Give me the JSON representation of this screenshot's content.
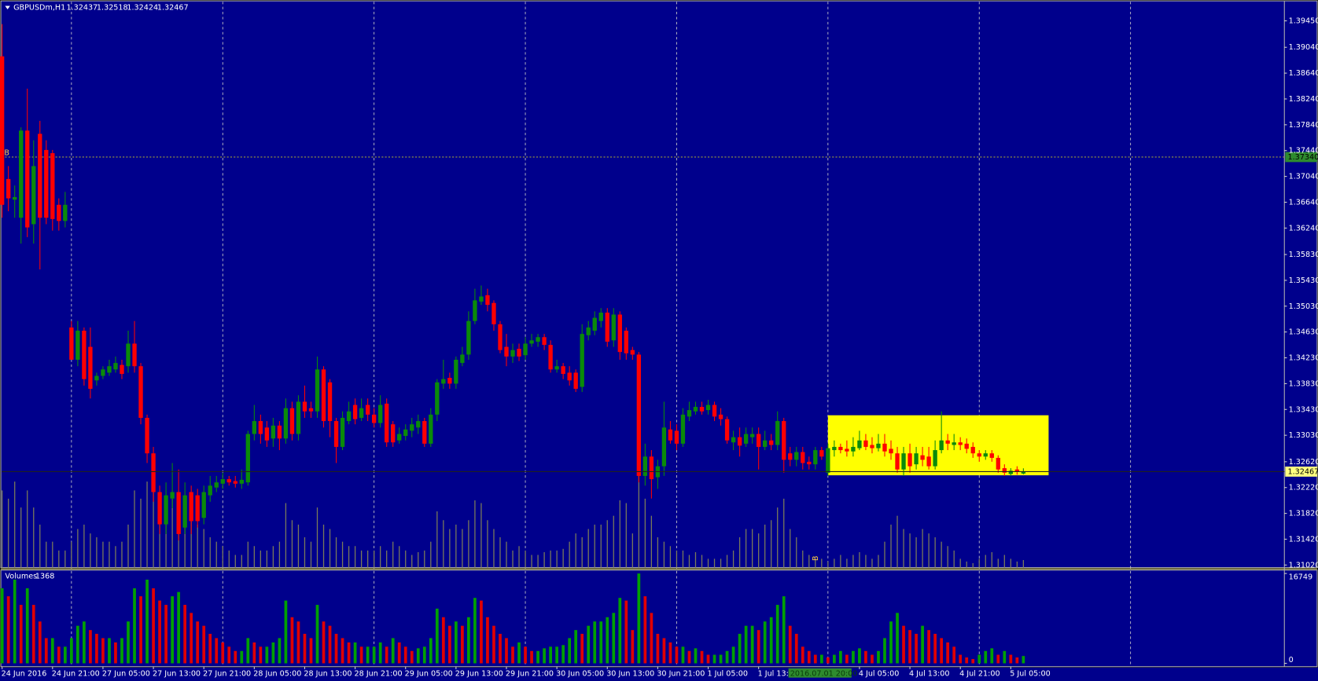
{
  "chart_data": {
    "type": "candlestick",
    "title": "GBPUSDm,H1",
    "open": [
      1.389,
      1.37,
      1.3668,
      1.364,
      1.3775,
      1.363,
      1.377,
      1.3745,
      1.374,
      1.366,
      1.3635,
      1.347,
      1.342,
      1.3465,
      1.344,
      1.3388,
      1.3395,
      1.34,
      1.3405,
      1.3412,
      1.341,
      1.3445,
      1.341,
      1.333,
      1.3275,
      1.3215,
      1.3165,
      1.3205,
      1.3215,
      1.316,
      1.3215,
      1.321,
      1.3175,
      1.321,
      1.3222,
      1.3228,
      1.3235,
      1.3232,
      1.3228,
      1.323,
      1.3305,
      1.3325,
      1.3315,
      1.3298,
      1.3318,
      1.3298,
      1.3345,
      1.3305,
      1.3355,
      1.3345,
      1.334,
      1.3405,
      1.3385,
      1.3325,
      1.3285,
      1.3325,
      1.335,
      1.333,
      1.335,
      1.3335,
      1.3322,
      1.3352,
      1.332,
      1.3295,
      1.3302,
      1.331,
      1.3315,
      1.3325,
      1.329,
      1.3335,
      1.3383,
      1.3392,
      1.3383,
      1.3415,
      1.3428,
      1.348,
      1.351,
      1.352,
      1.3508,
      1.3475,
      1.344,
      1.3425,
      1.3437,
      1.3427,
      1.3445,
      1.3448,
      1.3455,
      1.3443,
      1.3405,
      1.341,
      1.34,
      1.34,
      1.3378,
      1.3458,
      1.3465,
      1.348,
      1.3493,
      1.345,
      1.349,
      1.3465,
      1.3435,
      1.3428,
      1.324,
      1.327,
      1.3238,
      1.3255,
      1.3312,
      1.331,
      1.329,
      1.3332,
      1.334,
      1.3347,
      1.3342,
      1.335,
      1.3335,
      1.3328,
      1.3292,
      1.33,
      1.329,
      1.33,
      1.3305,
      1.3285,
      1.3295,
      1.3288,
      1.3325,
      1.3275,
      1.3265,
      1.3277,
      1.3262,
      1.3258,
      1.328,
      1.3245,
      1.328,
      1.3285,
      1.3282,
      1.3278,
      1.3283,
      1.3295,
      1.3288,
      1.3283,
      1.329,
      1.3282,
      1.3275,
      1.325,
      1.3275,
      1.3258,
      1.3272,
      1.327,
      1.3255,
      1.328,
      1.3295,
      1.3288,
      1.3292,
      1.329,
      1.3285,
      1.3275,
      1.327,
      1.3275,
      1.3268,
      1.3252,
      1.3243,
      1.325,
      1.32437
    ],
    "high": [
      1.394,
      1.372,
      1.369,
      1.378,
      1.384,
      1.376,
      1.379,
      1.376,
      1.3745,
      1.367,
      1.368,
      1.348,
      1.348,
      1.347,
      1.347,
      1.34,
      1.341,
      1.342,
      1.3425,
      1.342,
      1.3465,
      1.348,
      1.3415,
      1.3335,
      1.3285,
      1.3225,
      1.323,
      1.326,
      1.325,
      1.323,
      1.3225,
      1.322,
      1.3225,
      1.324,
      1.324,
      1.3245,
      1.324,
      1.324,
      1.325,
      1.331,
      1.335,
      1.3335,
      1.3325,
      1.333,
      1.3325,
      1.336,
      1.3355,
      1.3365,
      1.338,
      1.3355,
      1.3425,
      1.341,
      1.339,
      1.333,
      1.334,
      1.3355,
      1.336,
      1.336,
      1.336,
      1.3345,
      1.3365,
      1.336,
      1.3325,
      1.3315,
      1.332,
      1.333,
      1.3335,
      1.333,
      1.3345,
      1.339,
      1.342,
      1.34,
      1.3425,
      1.344,
      1.3495,
      1.353,
      1.3535,
      1.353,
      1.3512,
      1.348,
      1.346,
      1.3445,
      1.3445,
      1.3455,
      1.346,
      1.346,
      1.346,
      1.345,
      1.342,
      1.3415,
      1.341,
      1.3405,
      1.3475,
      1.348,
      1.3495,
      1.35,
      1.35,
      1.35,
      1.3495,
      1.347,
      1.344,
      1.3432,
      1.329,
      1.328,
      1.3265,
      1.3355,
      1.3325,
      1.332,
      1.3345,
      1.3355,
      1.3355,
      1.3355,
      1.3358,
      1.3355,
      1.3345,
      1.3332,
      1.331,
      1.3315,
      1.3315,
      1.3315,
      1.3315,
      1.331,
      1.3305,
      1.334,
      1.333,
      1.3285,
      1.3285,
      1.3285,
      1.327,
      1.3285,
      1.3285,
      1.329,
      1.3295,
      1.329,
      1.3295,
      1.33,
      1.331,
      1.3305,
      1.33,
      1.3305,
      1.3305,
      1.3295,
      1.3285,
      1.3285,
      1.329,
      1.3285,
      1.3285,
      1.3285,
      1.3295,
      1.334,
      1.3305,
      1.3305,
      1.33,
      1.3298,
      1.3292,
      1.328,
      1.328,
      1.328,
      1.3272,
      1.3258,
      1.3252,
      1.3255,
      1.32518
    ],
    "low": [
      1.364,
      1.365,
      1.364,
      1.36,
      1.361,
      1.36,
      1.356,
      1.363,
      1.362,
      1.362,
      1.3625,
      1.342,
      1.341,
      1.338,
      1.336,
      1.338,
      1.339,
      1.3395,
      1.34,
      1.339,
      1.34,
      1.34,
      1.332,
      1.326,
      1.32,
      1.315,
      1.315,
      1.319,
      1.314,
      1.315,
      1.315,
      1.316,
      1.3165,
      1.32,
      1.3215,
      1.322,
      1.3225,
      1.3222,
      1.322,
      1.3225,
      1.3295,
      1.329,
      1.3285,
      1.3285,
      1.328,
      1.329,
      1.3295,
      1.3295,
      1.333,
      1.333,
      1.333,
      1.3315,
      1.33,
      1.326,
      1.328,
      1.332,
      1.332,
      1.3325,
      1.3325,
      1.3315,
      1.3315,
      1.3285,
      1.3285,
      1.329,
      1.3295,
      1.33,
      1.3305,
      1.3285,
      1.3285,
      1.3325,
      1.3375,
      1.3375,
      1.3375,
      1.341,
      1.342,
      1.3475,
      1.3505,
      1.3495,
      1.3465,
      1.343,
      1.341,
      1.3415,
      1.3418,
      1.342,
      1.344,
      1.344,
      1.3435,
      1.34,
      1.34,
      1.339,
      1.338,
      1.337,
      1.337,
      1.345,
      1.3458,
      1.347,
      1.344,
      1.344,
      1.342,
      1.342,
      1.342,
      1.323,
      1.3225,
      1.3205,
      1.322,
      1.324,
      1.329,
      1.328,
      1.3285,
      1.3325,
      1.3335,
      1.3335,
      1.3335,
      1.3325,
      1.3318,
      1.329,
      1.328,
      1.327,
      1.3285,
      1.329,
      1.325,
      1.328,
      1.328,
      1.328,
      1.3245,
      1.3255,
      1.3255,
      1.325,
      1.325,
      1.325,
      1.3265,
      1.324,
      1.327,
      1.3275,
      1.327,
      1.327,
      1.328,
      1.328,
      1.3275,
      1.3278,
      1.327,
      1.3265,
      1.3245,
      1.324,
      1.3245,
      1.325,
      1.3255,
      1.325,
      1.325,
      1.3275,
      1.328,
      1.328,
      1.328,
      1.3275,
      1.3268,
      1.3262,
      1.3265,
      1.3262,
      1.3245,
      1.324,
      1.324,
      1.3242,
      1.32424
    ],
    "close": [
      1.366,
      1.367,
      1.3672,
      1.3775,
      1.3625,
      1.372,
      1.364,
      1.364,
      1.3638,
      1.3635,
      1.366,
      1.342,
      1.3465,
      1.339,
      1.3375,
      1.3395,
      1.3405,
      1.341,
      1.3415,
      1.3398,
      1.3445,
      1.341,
      1.333,
      1.3275,
      1.3215,
      1.3165,
      1.321,
      1.3215,
      1.315,
      1.321,
      1.317,
      1.317,
      1.3215,
      1.3225,
      1.323,
      1.3235,
      1.323,
      1.3228,
      1.3234,
      1.3305,
      1.3325,
      1.3305,
      1.3295,
      1.3318,
      1.3298,
      1.3345,
      1.3305,
      1.3355,
      1.334,
      1.334,
      1.3405,
      1.3325,
      1.3325,
      1.3285,
      1.333,
      1.334,
      1.3328,
      1.3345,
      1.3335,
      1.3322,
      1.335,
      1.3292,
      1.3292,
      1.3305,
      1.3312,
      1.332,
      1.3325,
      1.329,
      1.3335,
      1.3385,
      1.339,
      1.3383,
      1.342,
      1.3428,
      1.348,
      1.3512,
      1.3518,
      1.3505,
      1.3475,
      1.3435,
      1.3425,
      1.3435,
      1.3425,
      1.3445,
      1.345,
      1.3455,
      1.3443,
      1.3405,
      1.341,
      1.3398,
      1.3388,
      1.3375,
      1.346,
      1.347,
      1.3485,
      1.3493,
      1.3448,
      1.349,
      1.3432,
      1.343,
      1.3428,
      1.324,
      1.327,
      1.3235,
      1.3255,
      1.3315,
      1.3295,
      1.329,
      1.3335,
      1.3342,
      1.3347,
      1.334,
      1.335,
      1.3332,
      1.3328,
      1.3295,
      1.33,
      1.3287,
      1.3305,
      1.3305,
      1.3285,
      1.3295,
      1.3288,
      1.3325,
      1.3265,
      1.3265,
      1.3277,
      1.326,
      1.3258,
      1.328,
      1.327,
      1.3283,
      1.3285,
      1.328,
      1.3278,
      1.3285,
      1.3295,
      1.3285,
      1.3283,
      1.329,
      1.3278,
      1.3275,
      1.325,
      1.3275,
      1.3255,
      1.3275,
      1.3265,
      1.3255,
      1.328,
      1.3295,
      1.329,
      1.3292,
      1.3288,
      1.3282,
      1.3275,
      1.327,
      1.3275,
      1.3268,
      1.325,
      1.3245,
      1.3248,
      1.3246,
      1.32467
    ],
    "volume": [
      14000,
      12500,
      15600,
      10900,
      14000,
      10900,
      7800,
      4700,
      4700,
      3100,
      3100,
      4700,
      7000,
      7800,
      6200,
      5500,
      4700,
      4700,
      3900,
      4700,
      7800,
      14000,
      12500,
      15600,
      14000,
      11700,
      10900,
      12500,
      13300,
      10900,
      9400,
      7800,
      7000,
      5500,
      4700,
      3900,
      3100,
      2300,
      2300,
      4700,
      3900,
      3100,
      3100,
      3900,
      4700,
      11700,
      8600,
      7800,
      5500,
      4700,
      10900,
      7800,
      7000,
      5500,
      4700,
      3900,
      3900,
      3100,
      3100,
      3100,
      3900,
      3100,
      4700,
      3900,
      3100,
      2300,
      2800,
      3100,
      4700,
      10200,
      8600,
      7000,
      7800,
      7000,
      8600,
      12200,
      11700,
      8600,
      7000,
      5500,
      4700,
      3100,
      3900,
      3100,
      2300,
      2300,
      2800,
      3100,
      3100,
      3400,
      4700,
      6200,
      5500,
      7000,
      7800,
      7800,
      8600,
      9400,
      12200,
      11700,
      6200,
      16749,
      12500,
      9400,
      5500,
      4700,
      3900,
      3100,
      3100,
      2300,
      2800,
      2300,
      1600,
      1600,
      1600,
      2300,
      3100,
      5500,
      7000,
      7000,
      6200,
      7800,
      8600,
      10900,
      12500,
      7000,
      5500,
      3100,
      2300,
      1600,
      1600,
      1100,
      1600,
      2300,
      1600,
      2300,
      2800,
      2300,
      1600,
      2300,
      4700,
      7800,
      9400,
      7000,
      6200,
      5500,
      7000,
      6200,
      5500,
      4700,
      3900,
      3100,
      1600,
      1100,
      800,
      1600,
      2300,
      2800,
      1600,
      2300,
      1600,
      1100,
      1368
    ],
    "up_color": "#0a8a0a",
    "down_color": "#ff0000",
    "volume_up_color": "#00a000",
    "volume_down_color": "#e00000",
    "volume_title": "Volumes",
    "ylim": [
      1.3098,
      1.3972
    ],
    "yticks": [
      {
        "value": 1.3945,
        "label": "1.39450"
      },
      {
        "value": 1.3904,
        "label": "1.39040"
      },
      {
        "value": 1.3864,
        "label": "1.38640"
      },
      {
        "value": 1.3824,
        "label": "1.38240"
      },
      {
        "value": 1.3784,
        "label": "1.37840"
      },
      {
        "value": 1.3744,
        "label": "1.37440"
      },
      {
        "value": 1.3704,
        "label": "1.37040"
      },
      {
        "value": 1.3664,
        "label": "1.36640"
      },
      {
        "value": 1.3624,
        "label": "1.36240"
      },
      {
        "value": 1.3583,
        "label": "1.35830"
      },
      {
        "value": 1.3543,
        "label": "1.35430"
      },
      {
        "value": 1.3503,
        "label": "1.35030"
      },
      {
        "value": 1.3463,
        "label": "1.34630"
      },
      {
        "value": 1.3423,
        "label": "1.34230"
      },
      {
        "value": 1.3383,
        "label": "1.33830"
      },
      {
        "value": 1.3343,
        "label": "1.33430"
      },
      {
        "value": 1.3303,
        "label": "1.33030"
      },
      {
        "value": 1.3262,
        "label": "1.32620"
      },
      {
        "value": 1.3222,
        "label": "1.32220"
      },
      {
        "value": 1.3182,
        "label": "1.31820"
      },
      {
        "value": 1.3142,
        "label": "1.31420"
      },
      {
        "value": 1.3102,
        "label": "1.31020"
      }
    ],
    "y2lim": [
      0,
      16749
    ],
    "y2ticks": [
      16749,
      0
    ],
    "xticks": [
      {
        "value": 0,
        "label": "24 Jun 2016"
      },
      {
        "value": 8,
        "label": "24 Jun 21:00"
      },
      {
        "value": 16,
        "label": "27 Jun 05:00"
      },
      {
        "value": 24,
        "label": "27 Jun 13:00"
      },
      {
        "value": 32,
        "label": "27 Jun 21:00"
      },
      {
        "value": 40,
        "label": "28 Jun 05:00"
      },
      {
        "value": 48,
        "label": "28 Jun 13:00"
      },
      {
        "value": 56,
        "label": "28 Jun 21:00"
      },
      {
        "value": 64,
        "label": "29 Jun 05:00"
      },
      {
        "value": 72,
        "label": "29 Jun 13:00"
      },
      {
        "value": 80,
        "label": "29 Jun 21:00"
      },
      {
        "value": 88,
        "label": "30 Jun 05:00"
      },
      {
        "value": 96,
        "label": "30 Jun 13:00"
      },
      {
        "value": 104,
        "label": "30 Jun 21:00"
      },
      {
        "value": 112,
        "label": "1 Jul 05:00"
      },
      {
        "value": 120,
        "label": "1 Jul 13:00"
      },
      {
        "value": 136,
        "label": "4 Jul 05:00"
      },
      {
        "value": 144,
        "label": "4 Jul 13:00"
      },
      {
        "value": 152,
        "label": "4 Jul 21:00"
      },
      {
        "value": 160,
        "label": "5 Jul 05:00"
      }
    ],
    "xgrid": [
      11,
      35,
      59,
      83,
      107,
      131,
      155,
      179
    ],
    "grid": true,
    "xlim": [
      0,
      203
    ],
    "crosshair_time": {
      "value": 127,
      "label": "2016.07.01 20:00"
    },
    "hline": {
      "value": 1.3734,
      "label": "1.37340",
      "color": "#9a9a40"
    },
    "rectangle": {
      "x": [
        131,
        166
      ],
      "y": [
        1.3334,
        1.3241
      ],
      "color": "#ffff00"
    },
    "annotations": [
      "B",
      "B"
    ]
  }
}
